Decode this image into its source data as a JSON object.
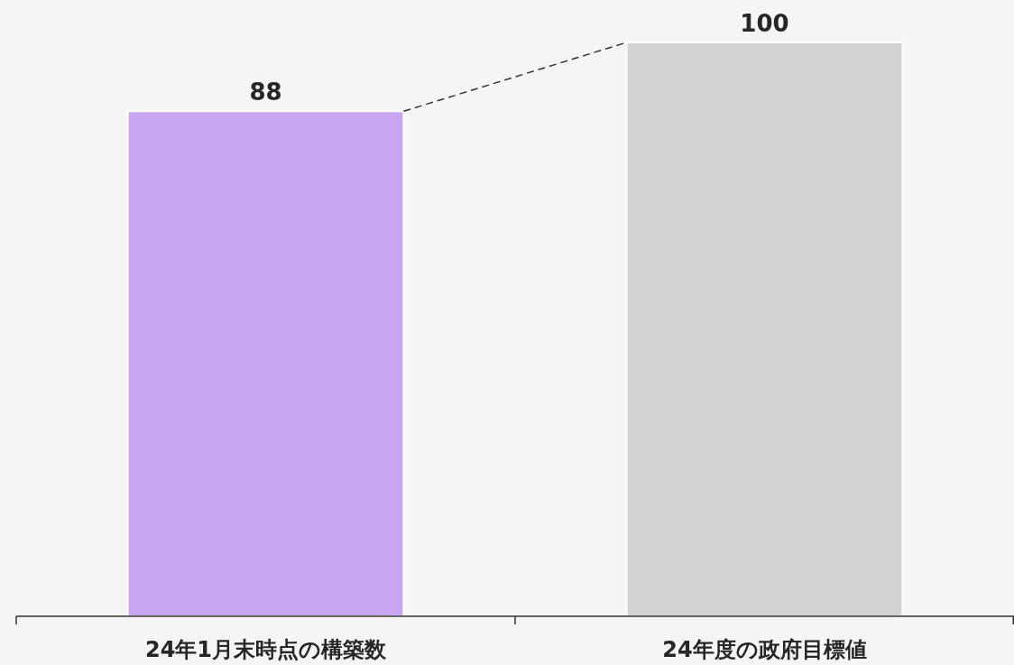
{
  "chart_data": {
    "type": "bar",
    "categories": [
      "24年1月末時点の構築数",
      "24年度の政府目標値"
    ],
    "values": [
      88,
      100
    ],
    "colors": [
      "#c8a6f1",
      "#d3d3d3"
    ],
    "data_labels": true
  }
}
